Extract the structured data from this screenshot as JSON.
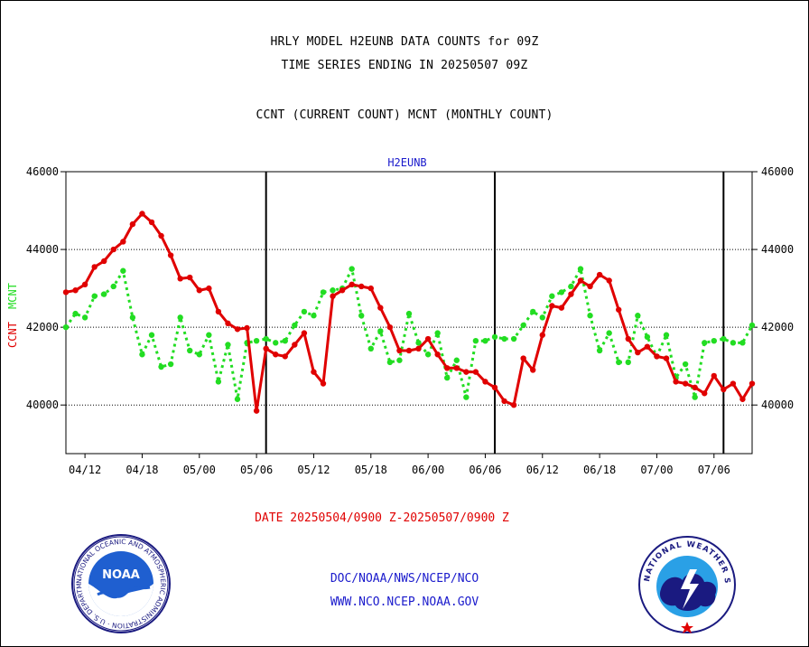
{
  "header": {
    "line1": "HRLY MODEL H2EUNB DATA COUNTS for 09Z",
    "line2": "TIME SERIES ENDING IN 20250507 09Z",
    "line3": "CCNT (CURRENT COUNT) MCNT (MONTHLY COUNT)"
  },
  "footer": {
    "date_range": "DATE 20250504/0900 Z-20250507/0900 Z",
    "org_path": "DOC/NOAA/NWS/NCEP/NCO",
    "website": "WWW.NCO.NCEP.NOAA.GOV"
  },
  "logos": {
    "noaa_center": "NOAA",
    "noaa_ring": "NATIONAL OCEANIC AND ATMOSPHERIC ADMINISTRATION · U.S. DEPARTMENT OF COMMERCE",
    "nws_ring": "NATIONAL WEATHER SERVICE"
  },
  "colors": {
    "ccnt": "#e00000",
    "mcnt": "#22dd22",
    "title_blue": "#1a1acc",
    "axis": "#000000"
  },
  "chart_data": {
    "type": "line",
    "title": "H2EUNB",
    "y_left_label_ccnt": "CCNT",
    "y_left_label_mcnt": "MCNT",
    "ylim": [
      38750,
      46000
    ],
    "yticks": [
      40000,
      42000,
      44000,
      46000
    ],
    "x_ticks": [
      "04/12",
      "04/18",
      "05/00",
      "05/06",
      "05/12",
      "05/18",
      "06/00",
      "06/06",
      "06/12",
      "06/18",
      "07/00",
      "07/06"
    ],
    "x_tick_index": [
      2,
      8,
      14,
      20,
      26,
      32,
      38,
      44,
      50,
      56,
      62,
      68
    ],
    "x_count": 73,
    "day_boundaries_index": [
      21,
      45,
      69
    ],
    "grid_y": [
      40000,
      42000,
      44000
    ],
    "series": [
      {
        "name": "CCNT",
        "values": [
          42900,
          42950,
          43100,
          43550,
          43700,
          44000,
          44200,
          44650,
          44920,
          44700,
          44350,
          43850,
          43250,
          43280,
          42950,
          43000,
          42400,
          42100,
          41950,
          41980,
          39850,
          41450,
          41300,
          41250,
          41550,
          41850,
          40850,
          40550,
          42800,
          42950,
          43100,
          43050,
          43000,
          42500,
          42000,
          41400,
          41400,
          41450,
          41700,
          41300,
          40950,
          40950,
          40850,
          40850,
          40600,
          40450,
          40100,
          40000,
          41200,
          40900,
          41800,
          42550,
          42500,
          42850,
          43200,
          43050,
          43350,
          43200,
          42450,
          41700,
          41350,
          41500,
          41250,
          41200,
          40600,
          40550,
          40450,
          40300,
          40750,
          40400,
          40550,
          40150,
          40550
        ]
      },
      {
        "name": "MCNT",
        "values": [
          42000,
          42350,
          42250,
          42800,
          42850,
          43050,
          43450,
          42250,
          41300,
          41800,
          40980,
          41050,
          42250,
          41400,
          41300,
          41800,
          40600,
          41550,
          40150,
          41600,
          41650,
          41700,
          41600,
          41650,
          42050,
          42400,
          42300,
          42900,
          42950,
          43000,
          43500,
          42300,
          41450,
          41900,
          41100,
          41150,
          42350,
          41600,
          41300,
          41850,
          40700,
          41150,
          40200,
          41650,
          41650,
          41750,
          41700,
          41700,
          42050,
          42400,
          42250,
          42800,
          42900,
          43050,
          43500,
          42300,
          41400,
          41850,
          41100,
          41100,
          42300,
          41750,
          41250,
          41800,
          40700,
          41050,
          40200,
          41600,
          41650,
          41700,
          41600,
          41600,
          42050
        ]
      }
    ]
  }
}
